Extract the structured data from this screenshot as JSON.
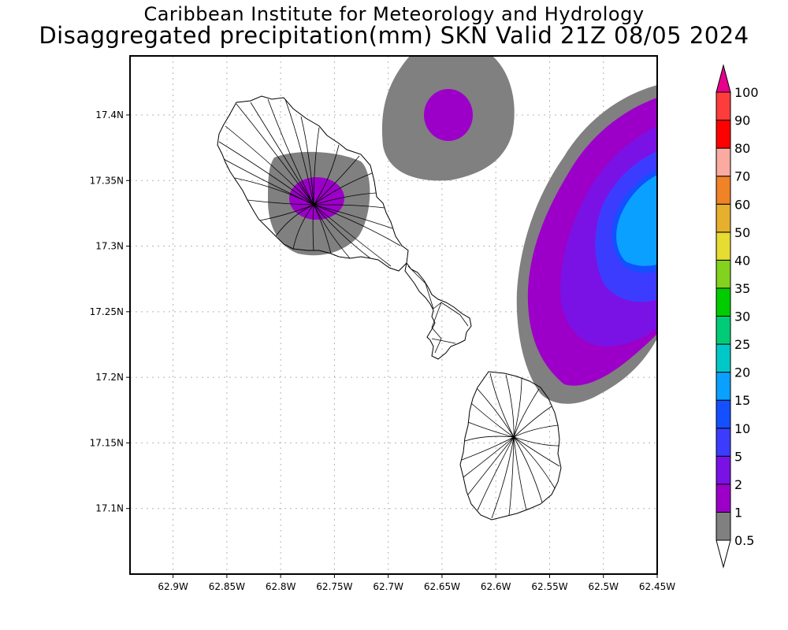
{
  "header": {
    "title": "Caribbean Institute for Meteorology and Hydrology",
    "subtitle": "Disaggregated precipitation(mm) SKN Valid 21Z 08/05 2024"
  },
  "map": {
    "region": "SKN",
    "lon_range": [
      -62.94,
      -62.45
    ],
    "lat_range": [
      17.05,
      17.445
    ],
    "x_ticks": [
      "62.9W",
      "62.85W",
      "62.8W",
      "62.75W",
      "62.7W",
      "62.65W",
      "62.6W",
      "62.55W",
      "62.5W",
      "62.45W"
    ],
    "y_ticks": [
      "17.4N",
      "17.35N",
      "17.3N",
      "17.25N",
      "17.2N",
      "17.15N",
      "17.1N"
    ],
    "grid": true
  },
  "legend": {
    "levels": [
      "0.5",
      "1",
      "2",
      "5",
      "10",
      "15",
      "20",
      "25",
      "30",
      "35",
      "40",
      "50",
      "60",
      "70",
      "80",
      "90",
      "100"
    ],
    "colors": [
      "#808080",
      "#9c00c8",
      "#7a12e6",
      "#3c3cff",
      "#1450ff",
      "#0aa0ff",
      "#00c8c8",
      "#00cc78",
      "#00cc00",
      "#82d21e",
      "#e6dc32",
      "#e6af2d",
      "#f08228",
      "#faaaa0",
      "#ff0000",
      "#ff3c3c",
      "#e6008c"
    ]
  }
}
